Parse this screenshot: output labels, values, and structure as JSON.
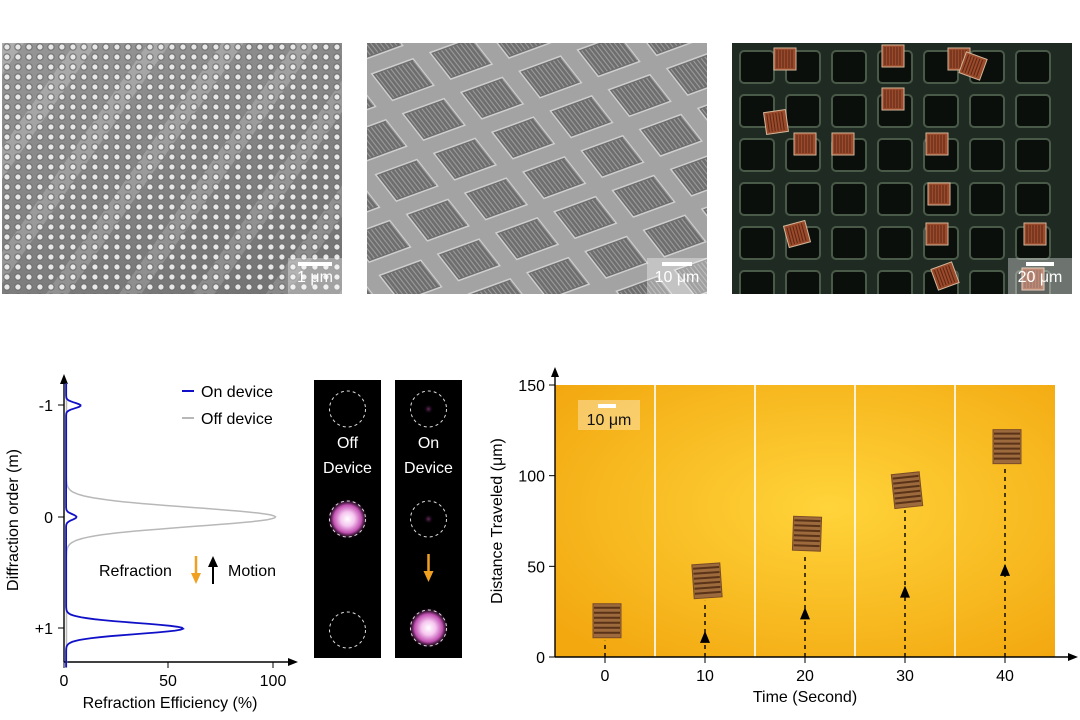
{
  "images": {
    "sem_nanopillars": {
      "scale": "1 μm"
    },
    "sem_array": {
      "scale": "10 μm"
    },
    "optical_devices": {
      "scale": "20 μm"
    }
  },
  "diffraction_plot": {
    "ylabel": "Diffraction order (m)",
    "xlabel": "Refraction Efficiency (%)",
    "yticks": [
      "-1",
      "0",
      "+1"
    ],
    "xticks": [
      "0",
      "50",
      "100"
    ],
    "legend": [
      "On device",
      "Off device"
    ],
    "annotation_refraction": "Refraction",
    "annotation_motion": "Motion",
    "colors": {
      "on_device": "#1010c8",
      "off_device": "#b8b8b8"
    }
  },
  "spot_images": {
    "off_label": [
      "Off",
      "Device"
    ],
    "on_label": [
      "On",
      "Device"
    ]
  },
  "chart_data": {
    "type": "scatter",
    "xlabel": "Time (Second)",
    "ylabel": "Distance Traveled (μm)",
    "xlim": [
      -5,
      45
    ],
    "ylim": [
      0,
      150
    ],
    "xticks": [
      0,
      10,
      20,
      30,
      40
    ],
    "yticks": [
      0,
      50,
      100,
      150
    ],
    "scale_label": "10 μm",
    "x": [
      0,
      10,
      20,
      30,
      40
    ],
    "y": [
      20,
      42,
      68,
      92,
      116
    ]
  }
}
